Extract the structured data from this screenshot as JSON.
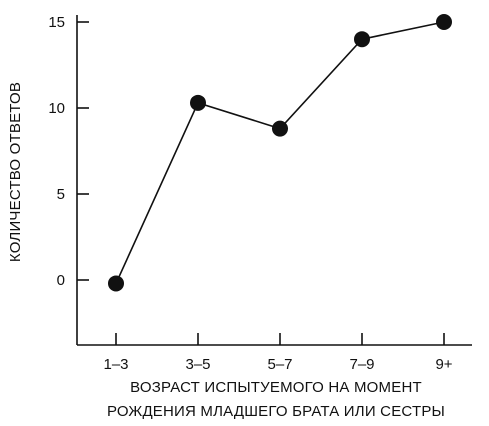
{
  "chart_data": {
    "type": "line",
    "categories": [
      "1–3",
      "3–5",
      "5–7",
      "7–9",
      "9+"
    ],
    "values": [
      -0.2,
      10.3,
      8.8,
      14.0,
      15.0
    ],
    "yticks": [
      0,
      5,
      10,
      15
    ],
    "ylim": [
      -4,
      16
    ],
    "ylabel": "КОЛИЧЕСТВО ОТВЕТОВ",
    "xlabel_lines": [
      "ВОЗРАСТ ИСПЫТУЕМОГО НА МОМЕНТ",
      "РОЖДЕНИЯ МЛАДШЕГО БРАТА ИЛИ СЕСТРЫ"
    ],
    "grid": false,
    "colors": {
      "line": "#111111",
      "marker": "#111111"
    }
  }
}
